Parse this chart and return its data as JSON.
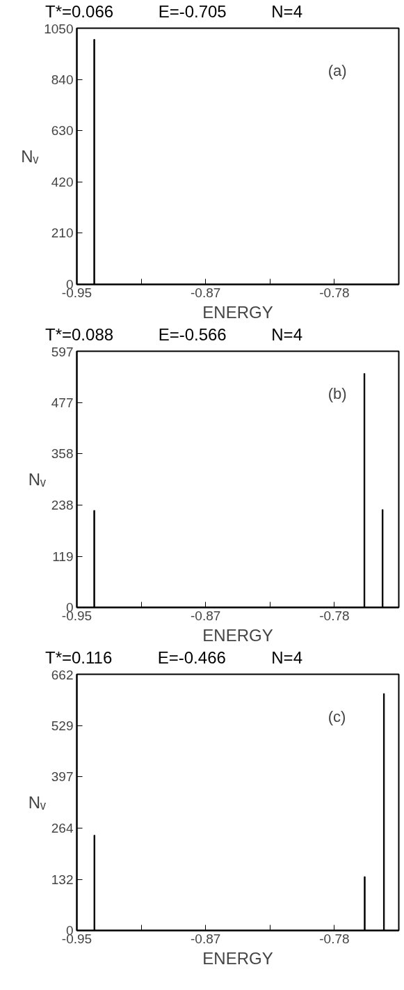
{
  "chart_data": [
    {
      "type": "bar",
      "title": "T*=0.066",
      "annotations": [
        "E=-0.705",
        "N=4",
        "(a)"
      ],
      "xlabel": "ENERGY",
      "ylabel": "Nᵥ",
      "x": [
        -0.9425
      ],
      "values": [
        1004
      ],
      "color": "#000000",
      "xlim": [
        -0.954,
        -0.7415
      ],
      "xticks": [
        {
          "value": -0.954,
          "label": "-0.95"
        },
        {
          "value": -0.9115,
          "label": null
        },
        {
          "value": -0.869,
          "label": "-0.87"
        },
        {
          "value": -0.8265,
          "label": null
        },
        {
          "value": -0.784,
          "label": "-0.78"
        }
      ],
      "ylim": [
        0,
        1050
      ],
      "yticks": [
        0,
        210,
        420,
        630,
        840,
        1050
      ],
      "grid": false
    },
    {
      "type": "bar",
      "title": "T*=0.088",
      "annotations": [
        "E=-0.566",
        "N=4",
        "(b)"
      ],
      "xlabel": "ENERGY",
      "ylabel": "Nᵥ",
      "x": [
        -0.9425,
        -0.7642,
        -0.7522
      ],
      "values": [
        226,
        545,
        228
      ],
      "color": "#000000",
      "xlim": [
        -0.954,
        -0.7415
      ],
      "xticks": [
        {
          "value": -0.954,
          "label": "-0.95"
        },
        {
          "value": -0.9115,
          "label": null
        },
        {
          "value": -0.869,
          "label": "-0.87"
        },
        {
          "value": -0.8265,
          "label": null
        },
        {
          "value": -0.784,
          "label": "-0.78"
        }
      ],
      "ylim": [
        0,
        597
      ],
      "yticks": [
        0,
        119,
        238,
        358,
        477,
        597
      ],
      "grid": false
    },
    {
      "type": "bar",
      "title": "T*=0.116",
      "annotations": [
        "E=-0.466",
        "N=4",
        "(c)"
      ],
      "xlabel": "ENERGY",
      "ylabel": "Nᵥ",
      "x": [
        -0.9424,
        -0.764,
        -0.7513
      ],
      "values": [
        246,
        139,
        612
      ],
      "color": "#000000",
      "xlim": [
        -0.954,
        -0.7415
      ],
      "xticks": [
        {
          "value": -0.954,
          "label": "-0.95"
        },
        {
          "value": -0.9115,
          "label": null
        },
        {
          "value": -0.869,
          "label": "-0.87"
        },
        {
          "value": -0.8265,
          "label": null
        },
        {
          "value": -0.784,
          "label": "-0.78"
        }
      ],
      "ylim": [
        0,
        662
      ],
      "yticks": [
        0,
        132,
        264,
        397,
        529,
        662
      ],
      "grid": false
    }
  ]
}
